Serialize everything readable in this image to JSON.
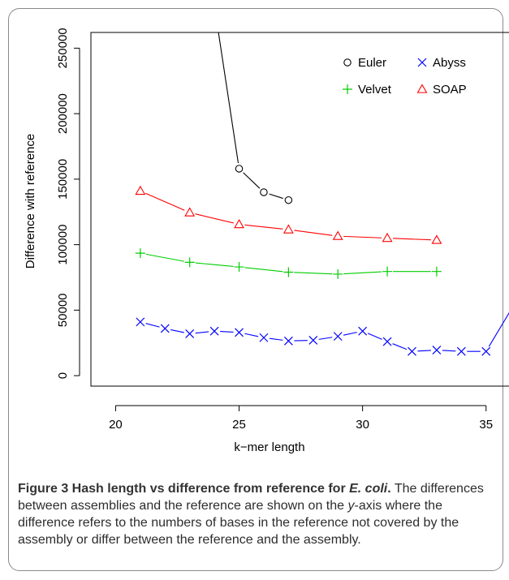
{
  "figure": {
    "title_prefix": "Figure 3 Hash length vs difference from reference for ",
    "title_species": "E. coli",
    "title_suffix": ".",
    "body_part1": "The differences between assemblies and the reference are shown on the ",
    "body_axis": "y",
    "body_part2": "-axis where the difference refers to the numbers of bases in the reference not covered by the assembly or differ between the reference and the assembly."
  },
  "chart_data": {
    "type": "line",
    "xlabel": "k−mer length",
    "ylabel": "Difference with reference",
    "xlim": [
      19,
      35.6
    ],
    "ylim": [
      -8000,
      262000
    ],
    "x_ticks": [
      20,
      25,
      30,
      35
    ],
    "y_ticks": [
      0,
      50000,
      100000,
      150000,
      200000,
      250000
    ],
    "y_tick_labels": [
      "0",
      "50000",
      "100000",
      "150000",
      "200000",
      "250000"
    ],
    "grid": false,
    "legend_position": "top-right",
    "series": [
      {
        "name": "Euler",
        "marker": "circle",
        "color": "#000000",
        "line_extends_above_plot_from": [
          24.1,
          270000
        ],
        "x": [
          25,
          26,
          27
        ],
        "y": [
          158000,
          140000,
          134000
        ]
      },
      {
        "name": "Abyss",
        "marker": "x",
        "color": "#0000ff",
        "line_extends_beyond_plot_to": [
          36,
          50000
        ],
        "x": [
          21,
          22,
          23,
          24,
          25,
          26,
          27,
          28,
          29,
          30,
          31,
          32,
          33,
          34,
          35
        ],
        "y": [
          41000,
          36000,
          32000,
          34000,
          33000,
          29000,
          26500,
          27000,
          30000,
          34000,
          26000,
          18500,
          19500,
          18500,
          18500
        ]
      },
      {
        "name": "Velvet",
        "marker": "plus",
        "color": "#00cc00",
        "x": [
          21,
          23,
          25,
          27,
          29,
          31,
          33
        ],
        "y": [
          93500,
          86500,
          83000,
          79000,
          77500,
          79500,
          79500
        ]
      },
      {
        "name": "SOAP",
        "marker": "triangle",
        "color": "#ff0000",
        "x": [
          21,
          23,
          25,
          27,
          29,
          31,
          33
        ],
        "y": [
          141000,
          124500,
          115500,
          111500,
          106500,
          105000,
          103500
        ]
      }
    ]
  }
}
